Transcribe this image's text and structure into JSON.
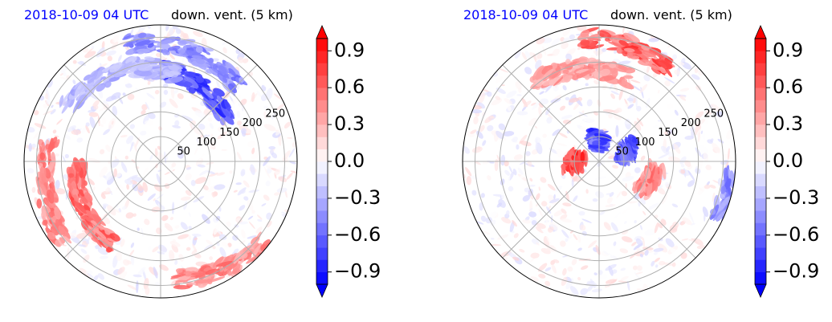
{
  "chart_data": [
    {
      "type": "heatmap",
      "projection": "polar",
      "title_left": "2018-10-09 04 UTC",
      "title_right": "down. vent. (5 km)",
      "radial_ticks": [
        50,
        100,
        150,
        200,
        250
      ],
      "angular_grid_deg": [
        0,
        45,
        90,
        135,
        180,
        225,
        270,
        315
      ],
      "grid": true,
      "colorbar": {
        "ticks": [
          -0.9,
          -0.6,
          -0.3,
          0.0,
          0.3,
          0.6,
          0.9
        ],
        "tick_labels": [
          "−0.9",
          "−0.6",
          "−0.3",
          "0.0",
          "0.3",
          "0.6",
          "0.9"
        ],
        "range": [
          -1.0,
          1.0
        ],
        "colormap": "bwr",
        "extend": "both"
      },
      "features": [
        {
          "sign": "negative",
          "azimuth_deg": 60,
          "radius": 170,
          "strength": 0.9,
          "extent": 55
        },
        {
          "sign": "negative",
          "azimuth_deg": 75,
          "radius": 230,
          "strength": 0.6,
          "extent": 60
        },
        {
          "sign": "negative",
          "azimuth_deg": 115,
          "radius": 200,
          "strength": 0.4,
          "extent": 70
        },
        {
          "sign": "positive",
          "azimuth_deg": 210,
          "radius": 180,
          "strength": 0.7,
          "extent": 60
        },
        {
          "sign": "positive",
          "azimuth_deg": 195,
          "radius": 240,
          "strength": 0.6,
          "extent": 50
        },
        {
          "sign": "positive",
          "azimuth_deg": 300,
          "radius": 250,
          "strength": 0.6,
          "extent": 45
        }
      ]
    },
    {
      "type": "heatmap",
      "projection": "polar",
      "title_left": "2018-10-09 04 UTC",
      "title_right": "down. vent. (5 km)",
      "radial_ticks": [
        50,
        100,
        150,
        200,
        250
      ],
      "angular_grid_deg": [
        0,
        45,
        90,
        135,
        180,
        225,
        270,
        315
      ],
      "grid": true,
      "colorbar": {
        "ticks": [
          -0.9,
          -0.6,
          -0.3,
          0.0,
          0.3,
          0.6,
          0.9
        ],
        "tick_labels": [
          "−0.9",
          "−0.6",
          "−0.3",
          "0.0",
          "0.3",
          "0.6",
          "0.9"
        ],
        "range": [
          -1.0,
          1.0
        ],
        "colormap": "bwr",
        "extend": "both"
      },
      "features": [
        {
          "sign": "negative",
          "azimuth_deg": 90,
          "radius": 40,
          "strength": 0.9,
          "extent": 30
        },
        {
          "sign": "negative",
          "azimuth_deg": 20,
          "radius": 60,
          "strength": 0.8,
          "extent": 25
        },
        {
          "sign": "positive",
          "azimuth_deg": 180,
          "radius": 50,
          "strength": 0.9,
          "extent": 30
        },
        {
          "sign": "positive",
          "azimuth_deg": 75,
          "radius": 240,
          "strength": 0.8,
          "extent": 45
        },
        {
          "sign": "positive",
          "azimuth_deg": 100,
          "radius": 190,
          "strength": 0.5,
          "extent": 60
        },
        {
          "sign": "positive",
          "azimuth_deg": 340,
          "radius": 110,
          "strength": 0.6,
          "extent": 30
        },
        {
          "sign": "negative",
          "azimuth_deg": 345,
          "radius": 270,
          "strength": 0.6,
          "extent": 20
        }
      ]
    }
  ]
}
